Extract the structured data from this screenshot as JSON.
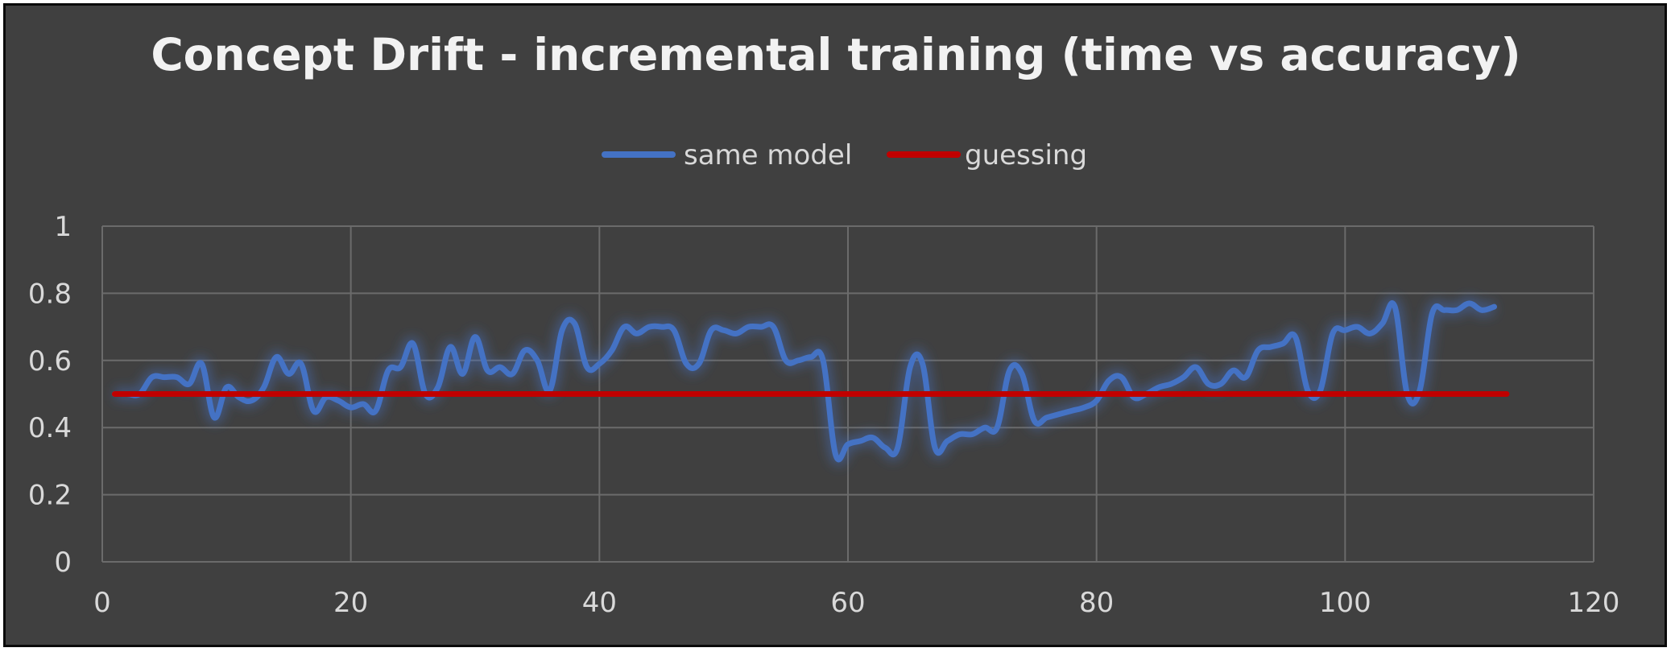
{
  "chart_data": {
    "type": "line",
    "title": "Concept Drift - incremental training (time vs accuracy)",
    "xlabel": "",
    "ylabel": "",
    "xlim": [
      0,
      120
    ],
    "ylim": [
      0,
      1
    ],
    "x_ticks": [
      "0",
      "20",
      "40",
      "60",
      "80",
      "100",
      "120"
    ],
    "y_ticks": [
      "0",
      "0.2",
      "0.4",
      "0.6",
      "0.8",
      "1"
    ],
    "grid": true,
    "legend_position": "top",
    "series": [
      {
        "name": "same model",
        "color": "#4472c4",
        "x": [
          1,
          2,
          3,
          4,
          5,
          6,
          7,
          8,
          9,
          10,
          11,
          12,
          13,
          14,
          15,
          16,
          17,
          18,
          19,
          20,
          21,
          22,
          23,
          24,
          25,
          26,
          27,
          28,
          29,
          30,
          31,
          32,
          33,
          34,
          35,
          36,
          37,
          38,
          39,
          40,
          41,
          42,
          43,
          44,
          45,
          46,
          47,
          48,
          49,
          50,
          51,
          52,
          53,
          54,
          55,
          56,
          57,
          58,
          59,
          60,
          61,
          62,
          63,
          64,
          65,
          66,
          67,
          68,
          69,
          70,
          71,
          72,
          73,
          74,
          75,
          76,
          77,
          78,
          79,
          80,
          81,
          82,
          83,
          84,
          85,
          86,
          87,
          88,
          89,
          90,
          91,
          92,
          93,
          94,
          95,
          96,
          97,
          98,
          99,
          100,
          101,
          102,
          103,
          104,
          105,
          106,
          107,
          108,
          109,
          110,
          111,
          112
        ],
        "values": [
          0.5,
          0.5,
          0.5,
          0.55,
          0.55,
          0.55,
          0.53,
          0.59,
          0.43,
          0.52,
          0.49,
          0.48,
          0.52,
          0.61,
          0.56,
          0.59,
          0.45,
          0.49,
          0.48,
          0.46,
          0.47,
          0.45,
          0.57,
          0.58,
          0.65,
          0.5,
          0.52,
          0.64,
          0.56,
          0.67,
          0.57,
          0.58,
          0.56,
          0.63,
          0.6,
          0.51,
          0.69,
          0.71,
          0.58,
          0.59,
          0.63,
          0.7,
          0.68,
          0.7,
          0.7,
          0.69,
          0.59,
          0.59,
          0.69,
          0.69,
          0.68,
          0.7,
          0.7,
          0.7,
          0.6,
          0.6,
          0.61,
          0.6,
          0.32,
          0.35,
          0.36,
          0.37,
          0.34,
          0.34,
          0.58,
          0.59,
          0.34,
          0.36,
          0.38,
          0.38,
          0.4,
          0.4,
          0.57,
          0.56,
          0.42,
          0.43,
          0.44,
          0.45,
          0.46,
          0.48,
          0.54,
          0.55,
          0.49,
          0.5,
          0.52,
          0.53,
          0.55,
          0.58,
          0.53,
          0.53,
          0.57,
          0.55,
          0.63,
          0.64,
          0.65,
          0.67,
          0.51,
          0.51,
          0.68,
          0.69,
          0.7,
          0.68,
          0.71,
          0.76,
          0.5,
          0.51,
          0.74,
          0.75,
          0.75,
          0.77,
          0.75,
          0.76
        ]
      },
      {
        "name": "guessing",
        "color": "#c00000",
        "x": [
          1,
          113
        ],
        "values": [
          0.5,
          0.5
        ]
      }
    ]
  }
}
